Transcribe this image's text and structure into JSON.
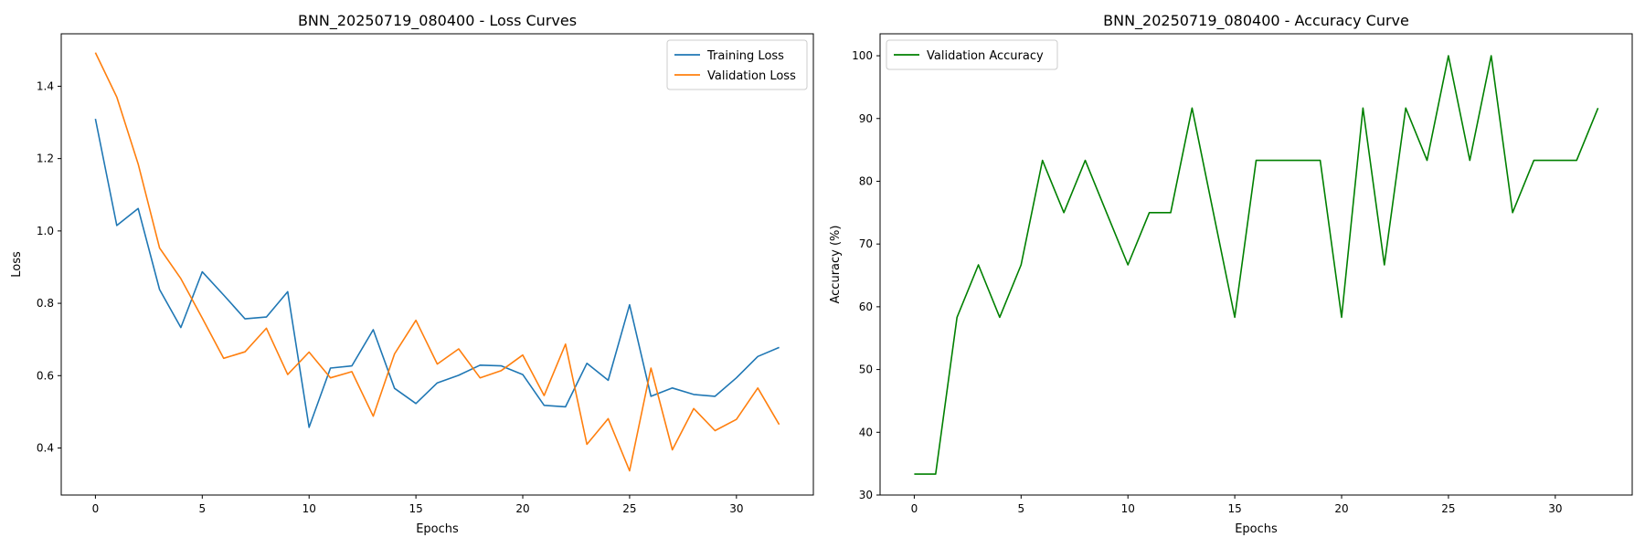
{
  "chart_data": [
    {
      "type": "line",
      "title": "BNN_20250719_080400 - Loss Curves",
      "xlabel": "Epochs",
      "ylabel": "Loss",
      "xlim": [
        -1.6,
        33.6
      ],
      "ylim": [
        0.27,
        1.545
      ],
      "xticks": [
        0,
        5,
        10,
        15,
        20,
        25,
        30
      ],
      "yticks": [
        0.4,
        0.6,
        0.8,
        1.0,
        1.2,
        1.4
      ],
      "ytick_format": 1,
      "grid": false,
      "legend_placement": "top-right",
      "x": [
        0,
        1,
        2,
        3,
        4,
        5,
        6,
        7,
        8,
        9,
        10,
        11,
        12,
        13,
        14,
        15,
        16,
        17,
        18,
        19,
        20,
        21,
        22,
        23,
        24,
        25,
        26,
        27,
        28,
        29,
        30,
        31,
        32
      ],
      "series": [
        {
          "name": "Training Loss",
          "color": "#1f77b4",
          "values": [
            1.31,
            1.015,
            1.062,
            0.838,
            0.733,
            0.887,
            0.823,
            0.757,
            0.762,
            0.832,
            0.457,
            0.621,
            0.627,
            0.727,
            0.565,
            0.523,
            0.58,
            0.601,
            0.629,
            0.627,
            0.603,
            0.518,
            0.514,
            0.634,
            0.587,
            0.796,
            0.543,
            0.566,
            0.548,
            0.543,
            0.594,
            0.653,
            0.678
          ]
        },
        {
          "name": "Validation Loss",
          "color": "#ff7f0e",
          "values": [
            1.493,
            1.37,
            1.185,
            0.953,
            0.868,
            0.759,
            0.648,
            0.666,
            0.731,
            0.603,
            0.665,
            0.594,
            0.611,
            0.488,
            0.66,
            0.753,
            0.632,
            0.674,
            0.594,
            0.614,
            0.657,
            0.545,
            0.687,
            0.41,
            0.481,
            0.337,
            0.621,
            0.395,
            0.509,
            0.448,
            0.479,
            0.566,
            0.465
          ]
        }
      ]
    },
    {
      "type": "line",
      "title": "BNN_20250719_080400 - Accuracy Curve",
      "xlabel": "Epochs",
      "ylabel": "Accuracy (%)",
      "xlim": [
        -1.6,
        33.6
      ],
      "ylim": [
        30,
        103.5
      ],
      "xticks": [
        0,
        5,
        10,
        15,
        20,
        25,
        30
      ],
      "yticks": [
        30,
        40,
        50,
        60,
        70,
        80,
        90,
        100
      ],
      "ytick_format": 0,
      "grid": false,
      "legend_placement": "top-left",
      "x": [
        0,
        1,
        2,
        3,
        4,
        5,
        6,
        7,
        8,
        9,
        10,
        11,
        12,
        13,
        14,
        15,
        16,
        17,
        18,
        19,
        20,
        21,
        22,
        23,
        24,
        25,
        26,
        27,
        28,
        29,
        30,
        31,
        32
      ],
      "series": [
        {
          "name": "Validation Accuracy",
          "color": "#008000",
          "values": [
            33.33,
            33.33,
            58.33,
            66.67,
            58.33,
            66.67,
            83.33,
            75.0,
            83.33,
            75.0,
            66.67,
            75.0,
            75.0,
            91.67,
            75.0,
            58.33,
            83.33,
            83.33,
            83.33,
            83.33,
            58.33,
            91.67,
            66.67,
            91.67,
            83.33,
            100.0,
            83.33,
            100.0,
            75.0,
            83.33,
            83.33,
            83.33,
            91.67
          ]
        }
      ]
    }
  ]
}
